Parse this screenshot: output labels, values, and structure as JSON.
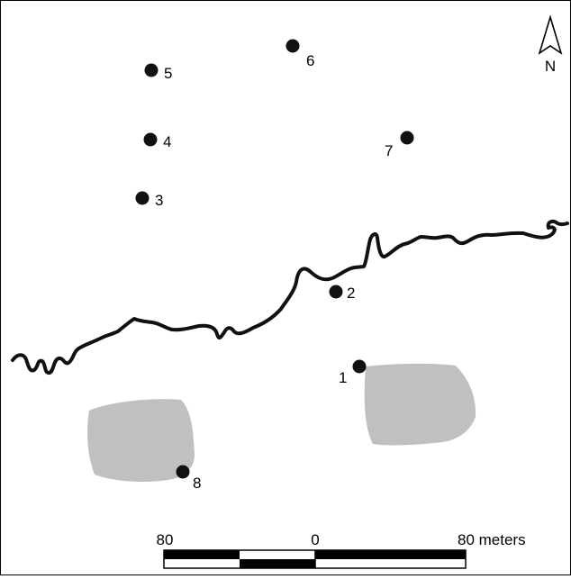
{
  "north_arrow": {
    "label": "N"
  },
  "sites": [
    {
      "id": "site-1",
      "label": "1"
    },
    {
      "id": "site-2",
      "label": "2"
    },
    {
      "id": "site-3",
      "label": "3"
    },
    {
      "id": "site-4",
      "label": "4"
    },
    {
      "id": "site-5",
      "label": "5"
    },
    {
      "id": "site-6",
      "label": "6"
    },
    {
      "id": "site-7",
      "label": "7"
    },
    {
      "id": "site-8",
      "label": "8"
    }
  ],
  "scale_bar": {
    "left_label": "80",
    "center_label": "0",
    "right_label": "80 meters"
  },
  "colors": {
    "feature_fill": "#bfc0c2",
    "river": "#111111",
    "site_marker": "#111111"
  }
}
